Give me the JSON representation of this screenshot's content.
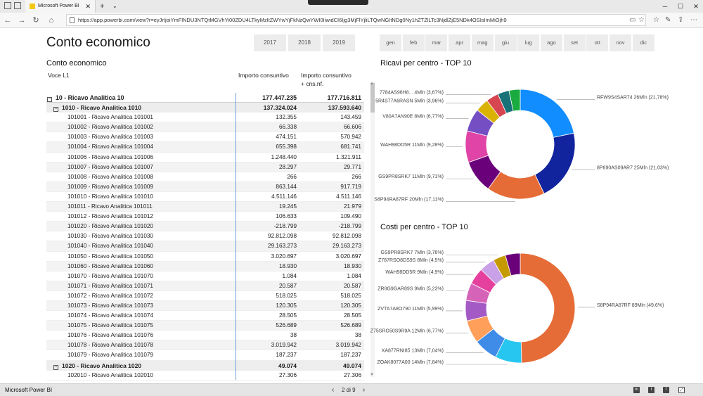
{
  "browser": {
    "tab_title": "Microsoft Power BI",
    "url": "https://app.powerbi.com/view?r=eyJrIjoiYmFlNDU3NTQtMGVhYi00ZDU4LTkyMzItZWYwYjFkNzQwYWI0IiwidCI6Ijg3MjFlYjliLTQwNGItNDg0Ny1hZTZlLTc3NjdlZjE5NDk4OSIsImMiOjh9"
  },
  "report": {
    "title": "Conto economico",
    "years": [
      "2017",
      "2018",
      "2019"
    ],
    "months": [
      "gen",
      "feb",
      "mar",
      "apr",
      "mag",
      "giu",
      "lug",
      "ago",
      "set",
      "ott",
      "nov",
      "dic"
    ]
  },
  "table": {
    "title": "Conto economico",
    "col_label": "Voce L1",
    "col_1": "Importo consuntivo",
    "col_2a": "Importo consuntivo",
    "col_2b": "+ cns.nf.",
    "rows": [
      {
        "level": 1,
        "label": "10 - Ricavo Analitica 10",
        "v1": "177.447.235",
        "v2": "177.716.811"
      },
      {
        "level": 2,
        "label": "1010 - Ricavo Analitica 1010",
        "v1": "137.324.024",
        "v2": "137.593.640"
      },
      {
        "level": 3,
        "label": "101001 - Ricavo Analitica 101001",
        "v1": "132.355",
        "v2": "143.459"
      },
      {
        "level": 3,
        "label": "101002 - Ricavo Analitica 101002",
        "v1": "66.338",
        "v2": "66.606"
      },
      {
        "level": 3,
        "label": "101003 - Ricavo Analitica 101003",
        "v1": "474.151",
        "v2": "570.942"
      },
      {
        "level": 3,
        "label": "101004 - Ricavo Analitica 101004",
        "v1": "655.398",
        "v2": "681.741"
      },
      {
        "level": 3,
        "label": "101006 - Ricavo Analitica 101006",
        "v1": "1.248.440",
        "v2": "1.321.911"
      },
      {
        "level": 3,
        "label": "101007 - Ricavo Analitica 101007",
        "v1": "28.297",
        "v2": "29.771"
      },
      {
        "level": 3,
        "label": "101008 - Ricavo Analitica 101008",
        "v1": "266",
        "v2": "266"
      },
      {
        "level": 3,
        "label": "101009 - Ricavo Analitica 101009",
        "v1": "863.144",
        "v2": "917.719"
      },
      {
        "level": 3,
        "label": "101010 - Ricavo Analitica 101010",
        "v1": "4.511.146",
        "v2": "4.511.146"
      },
      {
        "level": 3,
        "label": "101011 - Ricavo Analitica 101011",
        "v1": "19.245",
        "v2": "21.979"
      },
      {
        "level": 3,
        "label": "101012 - Ricavo Analitica 101012",
        "v1": "106.633",
        "v2": "109.490"
      },
      {
        "level": 3,
        "label": "101020 - Ricavo Analitica 101020",
        "v1": "-218.799",
        "v2": "-218.799"
      },
      {
        "level": 3,
        "label": "101030 - Ricavo Analitica 101030",
        "v1": "92.812.098",
        "v2": "92.812.098"
      },
      {
        "level": 3,
        "label": "101040 - Ricavo Analitica 101040",
        "v1": "29.163.273",
        "v2": "29.163.273"
      },
      {
        "level": 3,
        "label": "101050 - Ricavo Analitica 101050",
        "v1": "3.020.697",
        "v2": "3.020.697"
      },
      {
        "level": 3,
        "label": "101060 - Ricavo Analitica 101060",
        "v1": "18.930",
        "v2": "18.930"
      },
      {
        "level": 3,
        "label": "101070 - Ricavo Analitica 101070",
        "v1": "1.084",
        "v2": "1.084"
      },
      {
        "level": 3,
        "label": "101071 - Ricavo Analitica 101071",
        "v1": "20.587",
        "v2": "20.587"
      },
      {
        "level": 3,
        "label": "101072 - Ricavo Analitica 101072",
        "v1": "518.025",
        "v2": "518.025"
      },
      {
        "level": 3,
        "label": "101073 - Ricavo Analitica 101073",
        "v1": "120.305",
        "v2": "120.305"
      },
      {
        "level": 3,
        "label": "101074 - Ricavo Analitica 101074",
        "v1": "28.505",
        "v2": "28.505"
      },
      {
        "level": 3,
        "label": "101075 - Ricavo Analitica 101075",
        "v1": "526.689",
        "v2": "526.689"
      },
      {
        "level": 3,
        "label": "101076 - Ricavo Analitica 101076",
        "v1": "38",
        "v2": "38"
      },
      {
        "level": 3,
        "label": "101078 - Ricavo Analitica 101078",
        "v1": "3.019.942",
        "v2": "3.019.942"
      },
      {
        "level": 3,
        "label": "101079 - Ricavo Analitica 101079",
        "v1": "187.237",
        "v2": "187.237"
      },
      {
        "level": 2,
        "label": "1020 - Ricavo Analitica 1020",
        "v1": "49.074",
        "v2": "49.074"
      },
      {
        "level": 3,
        "label": "102010 - Ricavo Analitica 102010",
        "v1": "27.306",
        "v2": "27.306"
      }
    ]
  },
  "chart_data": [
    {
      "type": "pie",
      "title": "Ricavi per centro - TOP 10",
      "slices": [
        {
          "label": "RFW9S4SAR74 26Mln (21,78%)",
          "value": 21.78,
          "color": "#118DFF"
        },
        {
          "label": "8P890AS09AR7 25Mln (21,03%)",
          "value": 21.03,
          "color": "#12239E"
        },
        {
          "label": "S8P94RA87RF 20Mln (17,11%)",
          "value": 17.11,
          "color": "#E66C37"
        },
        {
          "label": "GS9PR8SRK7 11Mln (9,71%)",
          "value": 9.71,
          "color": "#6B007B"
        },
        {
          "label": "WAH98DD5R 11Mln (9,28%)",
          "value": 9.28,
          "color": "#E044A7"
        },
        {
          "label": "V80A7AN90E 8Mln (6,77%)",
          "value": 6.77,
          "color": "#744EC2"
        },
        {
          "label": "5R4S77A6RASN 5Mln (3,96%)",
          "value": 3.96,
          "color": "#D9B300"
        },
        {
          "label": "7784AS96H8... 4Mln (3,67%)",
          "value": 3.67,
          "color": "#D64550"
        },
        {
          "label": "",
          "value": 3.39,
          "color": "#197278"
        },
        {
          "label": "",
          "value": 3.3,
          "color": "#1AAB40"
        }
      ]
    },
    {
      "type": "pie",
      "title": "Costi per centro - TOP 10",
      "slices": [
        {
          "label": "S8P94RA87RF 89Mln (49,6%)",
          "value": 49.6,
          "color": "#E66C37"
        },
        {
          "label": "ZOAK8077A00 14Mln (7,84%)",
          "value": 7.84,
          "color": "#26C6F0"
        },
        {
          "label": "XA877RNI85 13Mln (7,04%)",
          "value": 7.04,
          "color": "#3F8CE8"
        },
        {
          "label": "Z75SRG50S9R9A 12Mln (6,77%)",
          "value": 6.77,
          "color": "#FF9F5A"
        },
        {
          "label": "ZVTA7A8O790 11Mln (5,99%)",
          "value": 5.99,
          "color": "#A45AC5"
        },
        {
          "label": "ZR8G9GAR89S 9Mln (5,23%)",
          "value": 5.23,
          "color": "#D564B9"
        },
        {
          "label": "WAH98DD5R 9Mln (4,9%)",
          "value": 4.9,
          "color": "#E5409E"
        },
        {
          "label": "Z787RSO8DS9S 8Mln (4,5%)",
          "value": 4.5,
          "color": "#C9A1E6"
        },
        {
          "label": "GS9PR8SRK7 7Mln (3,76%)",
          "value": 3.76,
          "color": "#C49A00"
        },
        {
          "label": "",
          "value": 4.37,
          "color": "#6B007B"
        }
      ]
    }
  ],
  "status": {
    "app_name": "Microsoft Power BI",
    "page": "2 di 9"
  }
}
